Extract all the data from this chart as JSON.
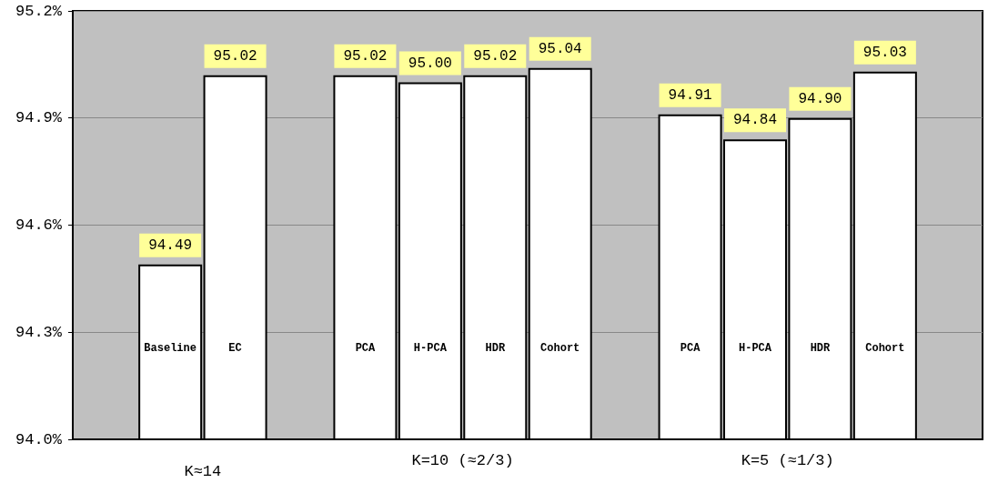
{
  "chart_data": {
    "type": "bar",
    "categories": [
      null,
      "Baseline",
      "EC",
      null,
      "PCA",
      "H-PCA",
      "HDR",
      "Cohort",
      null,
      "PCA",
      "H-PCA",
      "HDR",
      "Cohort",
      null
    ],
    "values": [
      null,
      94.49,
      95.02,
      null,
      95.02,
      95.0,
      95.02,
      95.04,
      null,
      94.91,
      94.84,
      94.9,
      95.03,
      null
    ],
    "value_labels": [
      null,
      "94.49",
      "95.02",
      null,
      "95.02",
      "95.00",
      "95.02",
      "95.04",
      null,
      "94.91",
      "94.84",
      "94.90",
      "95.03",
      null
    ],
    "color": "#ffffff",
    "ylim": [
      94.0,
      95.2
    ],
    "yticks": [
      {
        "value": 94.0,
        "label": "94.0%"
      },
      {
        "value": 94.3,
        "label": "94.3%"
      },
      {
        "value": 94.6,
        "label": "94.6%"
      },
      {
        "value": 94.9,
        "label": "94.9%"
      },
      {
        "value": 95.2,
        "label": "95.2%"
      }
    ],
    "grid": "y",
    "annotations": [
      "K≈14",
      "K=10 (≈2/3)",
      "K=5 (≈1/3)"
    ]
  }
}
